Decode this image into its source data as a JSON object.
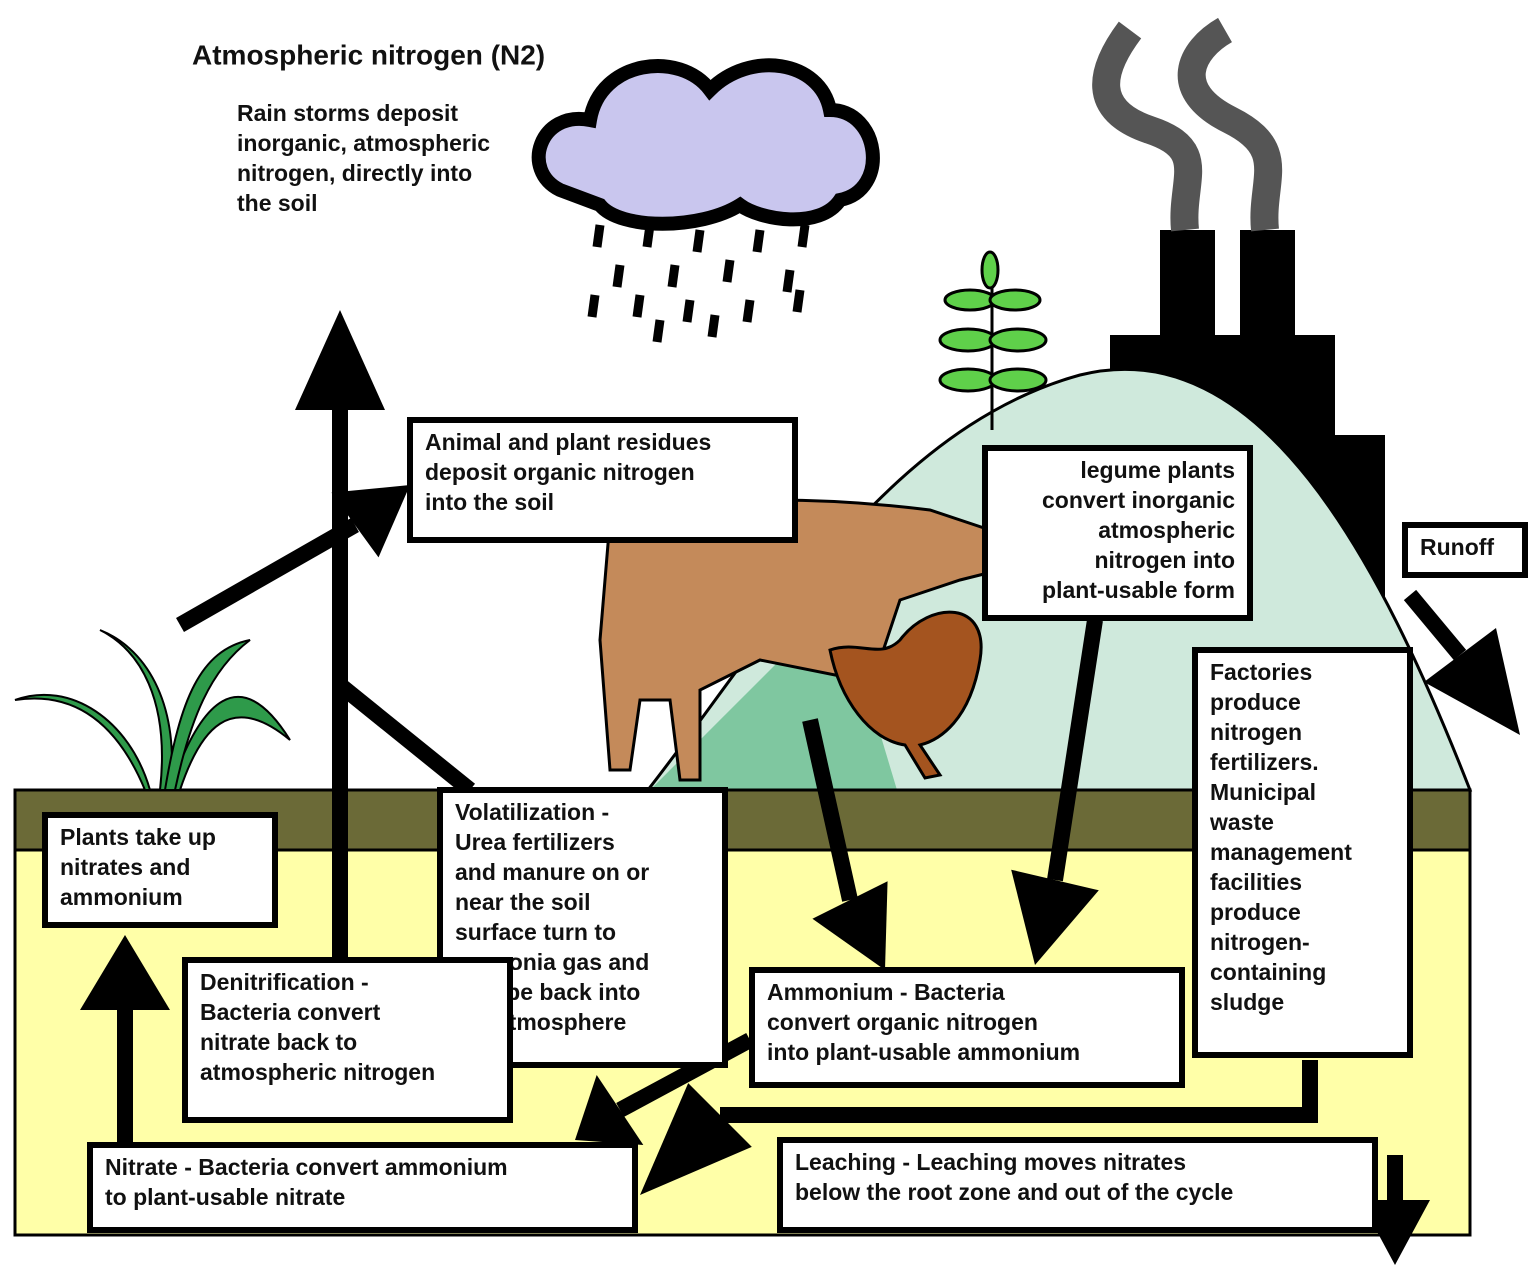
{
  "title": "Atmospheric nitrogen (N2)",
  "labels": {
    "rain": [
      "Rain storms deposit",
      "inorganic, atmospheric",
      "nitrogen, directly into",
      "the soil"
    ],
    "residues": [
      "Animal and plant residues",
      "deposit organic nitrogen",
      "into the soil"
    ],
    "legume": [
      "legume plants",
      "convert inorganic",
      "atmospheric",
      "nitrogen into",
      "plant-usable form"
    ],
    "runoff": [
      "Runoff"
    ],
    "factories": [
      "Factories",
      "produce",
      "nitrogen",
      "fertilizers.",
      "Municipal",
      "waste",
      "management",
      "facilities",
      "produce",
      "nitrogen-",
      "containing",
      "sludge"
    ],
    "plants": [
      "Plants take up",
      "nitrates and",
      "ammonium"
    ],
    "volatilization": [
      "Volatilization -",
      "Urea fertilizers",
      "and manure on or",
      "near the soil",
      "surface turn to",
      "ammonia gas and",
      "escape back into",
      "the atmosphere"
    ],
    "denitrification": [
      "Denitrification -",
      "Bacteria convert",
      "nitrate back to",
      "atmospheric nitrogen"
    ],
    "ammonium": [
      "Ammonium - Bacteria",
      "convert organic nitrogen",
      "into plant-usable ammonium"
    ],
    "nitrate": [
      "Nitrate - Bacteria convert ammonium",
      "to plant-usable nitrate"
    ],
    "leaching": [
      "Leaching - Leaching moves nitrates",
      "below the root zone and out of the cycle"
    ]
  }
}
